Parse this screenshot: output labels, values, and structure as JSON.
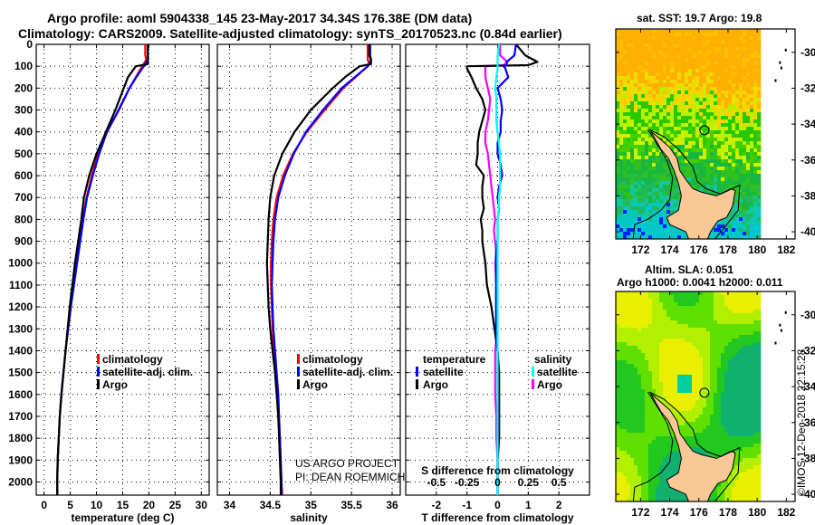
{
  "header": {
    "title_line1": "Argo profile: aoml 5904338_145 23-May-2017 34.34S 176.38E (DM data)",
    "title_line2": "Climatology: CARS2009. Satellite-adjusted climatology: synTS_20170523.nc (0.84d earlier)"
  },
  "colors": {
    "climatology": "#ff0000",
    "satellite_adj": "#0000ff",
    "argo": "#000000",
    "salinity_satellite": "#00ffff",
    "salinity_argo": "#ff00ff",
    "land": "#f9c896"
  },
  "chart_data": [
    {
      "type": "line",
      "id": "temperature",
      "xlabel": "temperature (deg C)",
      "ylabel": "",
      "xlim": [
        -1.5,
        31.5
      ],
      "ylim": [
        2060,
        0
      ],
      "xticks": [
        0,
        5,
        10,
        15,
        20,
        25,
        30
      ],
      "yticks": [
        0,
        100,
        200,
        300,
        400,
        500,
        600,
        700,
        800,
        900,
        1000,
        1100,
        1200,
        1300,
        1400,
        1500,
        1600,
        1700,
        1800,
        1900,
        2000
      ],
      "grid": true,
      "legend": [
        "climatology",
        "satellite-adj. clim.",
        "Argo"
      ],
      "legend_position": "center-right",
      "depth": [
        0,
        50,
        70,
        90,
        100,
        150,
        200,
        300,
        400,
        500,
        600,
        700,
        800,
        900,
        1000,
        1100,
        1200,
        1300,
        1400,
        1500,
        1600,
        1700,
        1800,
        1900,
        2000,
        2060
      ],
      "series": [
        {
          "name": "climatology",
          "values": [
            19.3,
            19.3,
            19.5,
            19.0,
            18.7,
            17.5,
            16.3,
            14.3,
            12.0,
            10.3,
            9.1,
            8.1,
            7.4,
            6.8,
            6.2,
            5.6,
            5.1,
            4.6,
            4.1,
            3.7,
            3.3,
            3.0,
            2.8,
            2.6,
            2.5,
            2.5
          ]
        },
        {
          "name": "satellite-adj. clim.",
          "values": [
            19.8,
            19.8,
            19.8,
            19.3,
            19.0,
            17.6,
            16.3,
            14.2,
            12.0,
            10.5,
            9.3,
            8.2,
            7.5,
            6.9,
            6.3,
            5.7,
            5.1,
            4.6,
            4.1,
            3.7,
            3.3,
            3.0,
            2.8,
            2.6,
            2.5,
            2.5
          ]
        },
        {
          "name": "Argo",
          "values": [
            19.8,
            19.8,
            19.8,
            19.8,
            17.5,
            16.0,
            15.2,
            13.6,
            11.8,
            10.0,
            8.6,
            7.6,
            7.1,
            6.5,
            5.9,
            5.4,
            4.9,
            4.5,
            4.1,
            3.7,
            3.3,
            3.0,
            2.8,
            2.6,
            2.5,
            2.5
          ]
        }
      ]
    },
    {
      "type": "line",
      "id": "salinity",
      "xlabel": "salinity",
      "xlim": [
        33.85,
        36.1
      ],
      "ylim": [
        2060,
        0
      ],
      "xticks": [
        34,
        34.5,
        35,
        35.5,
        36
      ],
      "tick_labels": [
        "34",
        "34.5",
        "35",
        "35.5",
        "36"
      ],
      "grid": true,
      "legend": [
        "climatology",
        "satellite-adj. clim.",
        "Argo"
      ],
      "legend_position": "center-right",
      "annotation": [
        "US ARGO PROJECT",
        "PI: DEAN ROEMMICH"
      ],
      "depth": [
        0,
        50,
        70,
        90,
        100,
        150,
        200,
        300,
        400,
        500,
        600,
        700,
        800,
        900,
        1000,
        1100,
        1200,
        1300,
        1400,
        1500,
        1600,
        1700,
        1800,
        1900,
        2000,
        2060
      ],
      "series": [
        {
          "name": "climatology",
          "values": [
            35.7,
            35.7,
            35.7,
            35.72,
            35.7,
            35.55,
            35.4,
            35.17,
            34.95,
            34.78,
            34.66,
            34.58,
            34.54,
            34.52,
            34.51,
            34.51,
            34.52,
            34.53,
            34.55,
            34.57,
            34.59,
            34.6,
            34.62,
            34.63,
            34.64,
            34.65
          ]
        },
        {
          "name": "satellite-adj. clim.",
          "values": [
            35.73,
            35.73,
            35.74,
            35.72,
            35.7,
            35.54,
            35.38,
            35.15,
            34.94,
            34.79,
            34.68,
            34.6,
            34.56,
            34.54,
            34.53,
            34.52,
            34.53,
            34.54,
            34.56,
            34.58,
            34.6,
            34.61,
            34.62,
            34.63,
            34.64,
            34.64
          ]
        },
        {
          "name": "Argo",
          "values": [
            35.72,
            35.72,
            35.74,
            35.74,
            35.6,
            35.42,
            35.27,
            35.0,
            34.8,
            34.65,
            34.55,
            34.5,
            34.48,
            34.47,
            34.46,
            34.47,
            34.48,
            34.5,
            34.53,
            34.56,
            34.58,
            34.6,
            34.61,
            34.62,
            34.63,
            34.63
          ]
        }
      ]
    },
    {
      "type": "line",
      "id": "difference",
      "xlabel": "T difference from climatology",
      "xlabel2": "S difference from climatology",
      "xlim": [
        -3,
        3
      ],
      "xlim2": [
        -0.75,
        0.75
      ],
      "ylim": [
        2060,
        0
      ],
      "xticks": [
        -2,
        -1,
        0,
        1,
        2
      ],
      "xticks2": [
        -0.5,
        -0.25,
        0,
        0.25,
        0.5
      ],
      "xtick2_labels": [
        "-0.5",
        "-0.25",
        "0",
        "0.25",
        "0.5"
      ],
      "grid": true,
      "legend_temperature": {
        "title": "temperature",
        "items": [
          "satellite",
          "Argo"
        ]
      },
      "legend_salinity": {
        "title": "salinity",
        "items": [
          "satellite",
          "Argo"
        ]
      },
      "legend_position": "lower-center",
      "depth": [
        0,
        50,
        80,
        95,
        100,
        110,
        150,
        200,
        250,
        300,
        350,
        400,
        450,
        500,
        550,
        600,
        650,
        700,
        750,
        800,
        850,
        900,
        950,
        1000,
        1100,
        1200,
        1300,
        1400,
        1500,
        1600,
        1700,
        1800,
        1900,
        2000,
        2060
      ],
      "series": [
        {
          "name": "T satellite",
          "axis": "T",
          "values": [
            0.6,
            0.55,
            0.3,
            0.3,
            0.2,
            0.25,
            0.35,
            0.0,
            0.1,
            0.15,
            0.1,
            0.1,
            0.0,
            0.0,
            0.1,
            0.15,
            0.05,
            0.0,
            0.05,
            0.0,
            0.0,
            0.0,
            -0.05,
            -0.05,
            -0.05,
            -0.05,
            -0.05,
            0.0,
            0.0,
            0.0,
            0.0,
            0.0,
            0.0,
            0.0,
            0.0
          ]
        },
        {
          "name": "T Argo",
          "axis": "T",
          "values": [
            0.6,
            0.9,
            1.3,
            1.0,
            -1.0,
            -1.0,
            -0.85,
            -0.7,
            -0.5,
            -0.4,
            -0.5,
            -0.6,
            -0.65,
            -0.65,
            -0.7,
            -0.45,
            -0.5,
            -0.5,
            -0.45,
            -0.55,
            -0.5,
            -0.5,
            -0.45,
            -0.4,
            -0.35,
            -0.2,
            -0.1,
            0.0,
            0.05,
            0.05,
            0.05,
            0.05,
            0.0,
            0.0,
            0.0
          ]
        },
        {
          "name": "S satellite",
          "axis": "S",
          "values": [
            0.01,
            0.0,
            0.0,
            0.0,
            0.0,
            0.0,
            -0.01,
            -0.02,
            -0.01,
            -0.01,
            -0.01,
            0.0,
            0.01,
            0.02,
            0.02,
            0.02,
            0.02,
            0.01,
            0.01,
            0.0,
            0.0,
            0.0,
            0.0,
            0.0,
            0.0,
            0.0,
            0.0,
            0.0,
            0.0,
            0.0,
            0.0,
            0.0,
            0.0,
            0.0,
            0.0
          ]
        },
        {
          "name": "S Argo",
          "axis": "S",
          "values": [
            0.02,
            0.02,
            0.08,
            0.05,
            -0.1,
            -0.1,
            -0.1,
            -0.08,
            -0.06,
            -0.07,
            -0.08,
            -0.1,
            -0.1,
            -0.08,
            -0.07,
            -0.06,
            -0.05,
            -0.04,
            -0.03,
            -0.02,
            -0.03,
            -0.02,
            -0.01,
            -0.02,
            -0.01,
            -0.01,
            0.0,
            -0.02,
            -0.02,
            -0.02,
            -0.01,
            -0.01,
            0.0,
            0.0,
            0.0
          ]
        }
      ]
    },
    {
      "type": "heatmap",
      "id": "sst-map",
      "title": "sat. SST: 19.7 Argo: 19.8",
      "xticks": [
        172,
        174,
        176,
        178,
        180,
        182
      ],
      "yticks": [
        -30,
        -32,
        -34,
        -36,
        -38,
        -40
      ],
      "xlim": [
        170.3,
        182.6
      ],
      "ylim": [
        -40.4,
        -28.7
      ],
      "marker": {
        "lon": 176.38,
        "lat": -34.34
      }
    },
    {
      "type": "heatmap",
      "id": "sla-map",
      "title_line1": "Altim. SLA: 0.051",
      "title_line2": "Argo h1000: 0.0041 h2000: 0.011",
      "xticks": [
        172,
        174,
        176,
        178,
        180,
        182
      ],
      "yticks": [
        -30,
        -32,
        -34,
        -36,
        -38,
        -40
      ],
      "xlim": [
        170.3,
        182.6
      ],
      "ylim": [
        -40.4,
        -28.7
      ],
      "marker": {
        "lon": 176.38,
        "lat": -34.34
      }
    }
  ],
  "footer": {
    "credit": "©IMOS 12-Dec-2018 22:15:28"
  }
}
